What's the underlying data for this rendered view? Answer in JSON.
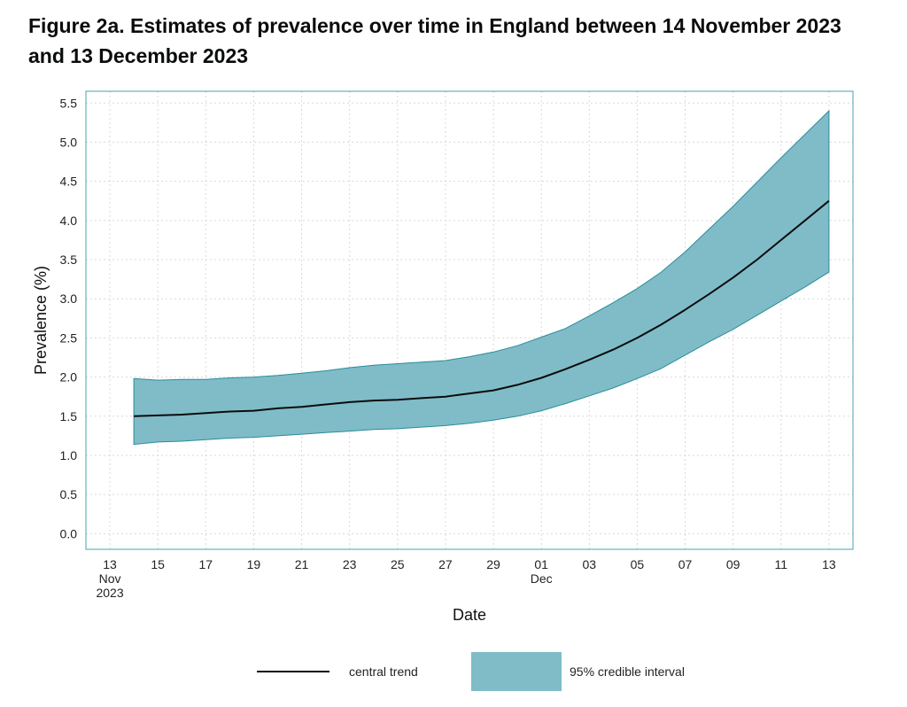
{
  "chart_data": {
    "type": "line",
    "title": "Figure 2a. Estimates of prevalence over time in England between 14 November 2023 and 13 December 2023",
    "xlabel": "Date",
    "ylabel": "Prevalence (%)",
    "ylim": [
      -0.2,
      5.65
    ],
    "xlim": [
      "2023-11-12",
      "2023-12-14"
    ],
    "y_ticks": [
      "0.0",
      "0.5",
      "1.0",
      "1.5",
      "2.0",
      "2.5",
      "3.0",
      "3.5",
      "4.0",
      "4.5",
      "5.0",
      "5.5"
    ],
    "x_ticks": [
      {
        "date": "2023-11-13",
        "lines": [
          "13",
          "Nov",
          "2023"
        ]
      },
      {
        "date": "2023-11-15",
        "lines": [
          "15"
        ]
      },
      {
        "date": "2023-11-17",
        "lines": [
          "17"
        ]
      },
      {
        "date": "2023-11-19",
        "lines": [
          "19"
        ]
      },
      {
        "date": "2023-11-21",
        "lines": [
          "21"
        ]
      },
      {
        "date": "2023-11-23",
        "lines": [
          "23"
        ]
      },
      {
        "date": "2023-11-25",
        "lines": [
          "25"
        ]
      },
      {
        "date": "2023-11-27",
        "lines": [
          "27"
        ]
      },
      {
        "date": "2023-11-29",
        "lines": [
          "29"
        ]
      },
      {
        "date": "2023-12-01",
        "lines": [
          "01",
          "Dec"
        ]
      },
      {
        "date": "2023-12-03",
        "lines": [
          "03"
        ]
      },
      {
        "date": "2023-12-05",
        "lines": [
          "05"
        ]
      },
      {
        "date": "2023-12-07",
        "lines": [
          "07"
        ]
      },
      {
        "date": "2023-12-09",
        "lines": [
          "09"
        ]
      },
      {
        "date": "2023-12-11",
        "lines": [
          "11"
        ]
      },
      {
        "date": "2023-12-13",
        "lines": [
          "13"
        ]
      }
    ],
    "grid": true,
    "legend_position": "bottom",
    "colors": {
      "line": "#0b0c0c",
      "band": "#7fbcc8",
      "band_edge": "#2a8c9a",
      "frame": "#4aa0ac",
      "grid": "#d9d9d9"
    },
    "series": [
      {
        "name": "central trend",
        "type": "line",
        "x": [
          "2023-11-14",
          "2023-11-15",
          "2023-11-16",
          "2023-11-17",
          "2023-11-18",
          "2023-11-19",
          "2023-11-20",
          "2023-11-21",
          "2023-11-22",
          "2023-11-23",
          "2023-11-24",
          "2023-11-25",
          "2023-11-26",
          "2023-11-27",
          "2023-11-28",
          "2023-11-29",
          "2023-11-30",
          "2023-12-01",
          "2023-12-02",
          "2023-12-03",
          "2023-12-04",
          "2023-12-05",
          "2023-12-06",
          "2023-12-07",
          "2023-12-08",
          "2023-12-09",
          "2023-12-10",
          "2023-12-11",
          "2023-12-12",
          "2023-12-13"
        ],
        "values": [
          1.5,
          1.51,
          1.52,
          1.54,
          1.56,
          1.57,
          1.6,
          1.62,
          1.65,
          1.68,
          1.7,
          1.71,
          1.73,
          1.75,
          1.79,
          1.83,
          1.9,
          1.99,
          2.1,
          2.22,
          2.35,
          2.5,
          2.67,
          2.86,
          3.06,
          3.27,
          3.5,
          3.75,
          4.0,
          4.25
        ]
      },
      {
        "name": "95% credible interval",
        "type": "band",
        "x": [
          "2023-11-14",
          "2023-11-15",
          "2023-11-16",
          "2023-11-17",
          "2023-11-18",
          "2023-11-19",
          "2023-11-20",
          "2023-11-21",
          "2023-11-22",
          "2023-11-23",
          "2023-11-24",
          "2023-11-25",
          "2023-11-26",
          "2023-11-27",
          "2023-11-28",
          "2023-11-29",
          "2023-11-30",
          "2023-12-01",
          "2023-12-02",
          "2023-12-03",
          "2023-12-04",
          "2023-12-05",
          "2023-12-06",
          "2023-12-07",
          "2023-12-08",
          "2023-12-09",
          "2023-12-10",
          "2023-12-11",
          "2023-12-12",
          "2023-12-13"
        ],
        "lower": [
          1.14,
          1.17,
          1.18,
          1.2,
          1.22,
          1.23,
          1.25,
          1.27,
          1.29,
          1.31,
          1.33,
          1.34,
          1.36,
          1.38,
          1.41,
          1.45,
          1.5,
          1.57,
          1.66,
          1.76,
          1.86,
          1.98,
          2.11,
          2.28,
          2.45,
          2.61,
          2.79,
          2.97,
          3.15,
          3.34
        ],
        "upper": [
          1.98,
          1.96,
          1.97,
          1.97,
          1.99,
          2.0,
          2.02,
          2.05,
          2.08,
          2.12,
          2.15,
          2.17,
          2.19,
          2.21,
          2.26,
          2.32,
          2.4,
          2.51,
          2.62,
          2.78,
          2.95,
          3.13,
          3.34,
          3.6,
          3.89,
          4.18,
          4.49,
          4.8,
          5.1,
          5.4
        ]
      }
    ]
  },
  "legend": {
    "line_label": "central trend",
    "band_label": "95% credible interval"
  }
}
